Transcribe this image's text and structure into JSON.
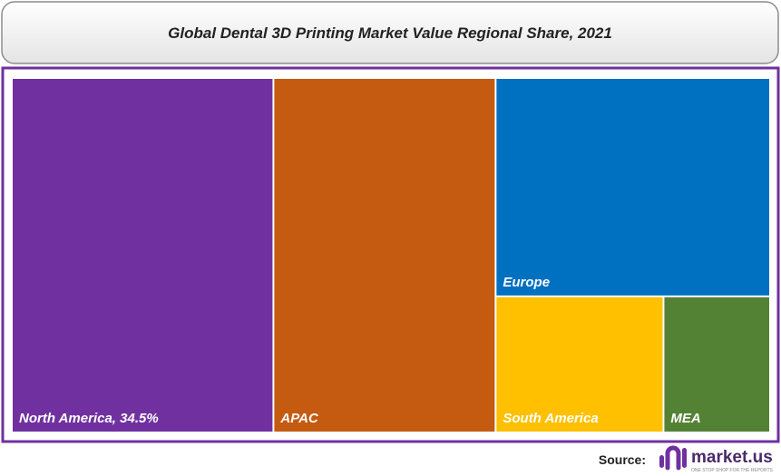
{
  "chart_data": {
    "type": "treemap",
    "title": "Global Dental 3D Printing Market Value Regional Share, 2021",
    "categories": [
      "North America, 34.5%",
      "APAC",
      "Europe",
      "South America",
      "MEA"
    ],
    "values": [
      34.5,
      29.3,
      22.3,
      8.5,
      5.4
    ],
    "colors": [
      "#7030a0",
      "#c55a11",
      "#0070c0",
      "#ffc000",
      "#548235"
    ]
  },
  "footer": {
    "source_label": "Source:",
    "logo_text": "market.us",
    "logo_tagline": "ONE STOP SHOP FOR THE REPORTS"
  }
}
